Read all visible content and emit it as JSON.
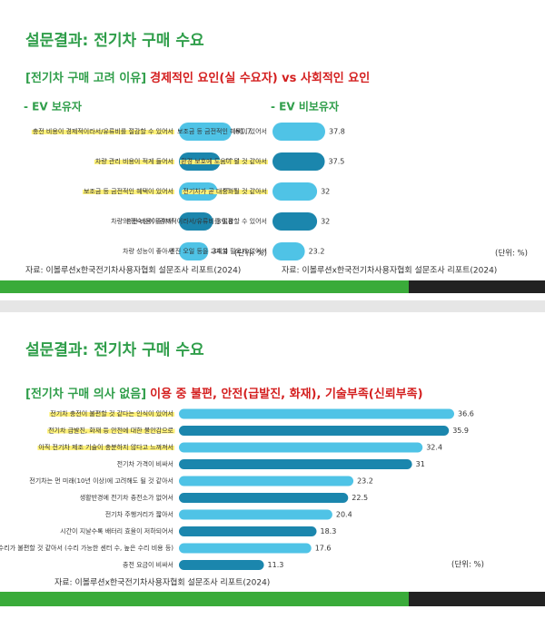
{
  "slides": [
    {
      "title": "설문결과: 전기차 구매 수요",
      "subtitle": {
        "bracket": "[전기차 구매 고려 이유]",
        "main": "경제적인 요인(실 수요자) vs 사회적인 요인"
      },
      "sources": [
        "자료: 이볼루션x한국전기차사용자협회 설문조사 리포트(2024)",
        "자료: 이볼루션x한국전기차사용자협회 설문조사 리포트(2024)"
      ]
    },
    {
      "title": "설문결과: 전기차 구매 수요",
      "subtitle": {
        "bracket": "[전기차 구매 의사 없음]",
        "main": "이용 중 불편, 안전(급발진, 화재), 기술부족(신뢰부족)"
      },
      "sources": [
        "자료: 이볼루션x한국전기차사용자협회 설문조사 리포트(2024)"
      ]
    }
  ],
  "chart_data": [
    {
      "type": "bar",
      "title": "- EV 보유자",
      "unit": "(단위: %)",
      "categories": [
        "충전 비용이 경제적이라서/유류비를 절감할 수 있어서",
        "차량 관리 비용이 적게 들어서",
        "보조금 등 금전적인 혜택이 있어서",
        "차량의 정숙성이 좋아서",
        "차량 성능이 좋아서"
      ],
      "values": [
        61.7,
        48.4,
        45.3,
        39.8,
        34.4
      ],
      "colors": [
        "#4fc3e6",
        "#1b86ad",
        "#4fc3e6",
        "#1b86ad",
        "#4fc3e6"
      ],
      "highlighted": [
        true,
        true,
        true,
        false,
        false
      ]
    },
    {
      "type": "bar",
      "title": "- EV 비보유자",
      "unit": "(단위: %)",
      "categories": [
        "보조금 등 금전적인 혜택이 있어서",
        "환경 보호에 도움이 될 것 같아서",
        "전기차가 곧 대중화될 것 같아서",
        "충전 비용이 경제적이라서/유류비를 절감할 수 있어서",
        "엔진 오일 등을 교체할 필요가 없어서"
      ],
      "values": [
        37.8,
        37.5,
        32,
        32,
        23.2
      ],
      "colors": [
        "#4fc3e6",
        "#1b86ad",
        "#4fc3e6",
        "#1b86ad",
        "#4fc3e6"
      ],
      "highlighted": [
        false,
        true,
        true,
        false,
        false
      ]
    },
    {
      "type": "bar",
      "unit": "(단위: %)",
      "categories": [
        "전기차 충전이 불편할 것 같다는 인식이 있어서",
        "전기차 급발진, 화재 등 안전에 대한 불안감으로",
        "아직 전기차 제조 기술이 충분하지 않다고 느껴져서",
        "전기차 가격이 비싸서",
        "전기차는 먼 미래(10년 이상)에 고려해도 될 것 같아서",
        "생활반경에 전기차 충전소가 없어서",
        "전기차 주행거리가 짧아서",
        "시간이 지날수록 배터리 효율이 저하되어서",
        "수리가 불편할 것 같아서 (수리 가능한 센터 수, 높은 수리 비용 등)",
        "충전 요금이 비싸서"
      ],
      "values": [
        36.6,
        35.9,
        32.4,
        31,
        23.2,
        22.5,
        20.4,
        18.3,
        17.6,
        11.3
      ],
      "colors": [
        "#4fc3e6",
        "#1b86ad",
        "#4fc3e6",
        "#1b86ad",
        "#4fc3e6",
        "#1b86ad",
        "#4fc3e6",
        "#1b86ad",
        "#4fc3e6",
        "#1b86ad"
      ],
      "highlighted": [
        true,
        true,
        true,
        false,
        false,
        false,
        false,
        false,
        false,
        false
      ]
    }
  ]
}
